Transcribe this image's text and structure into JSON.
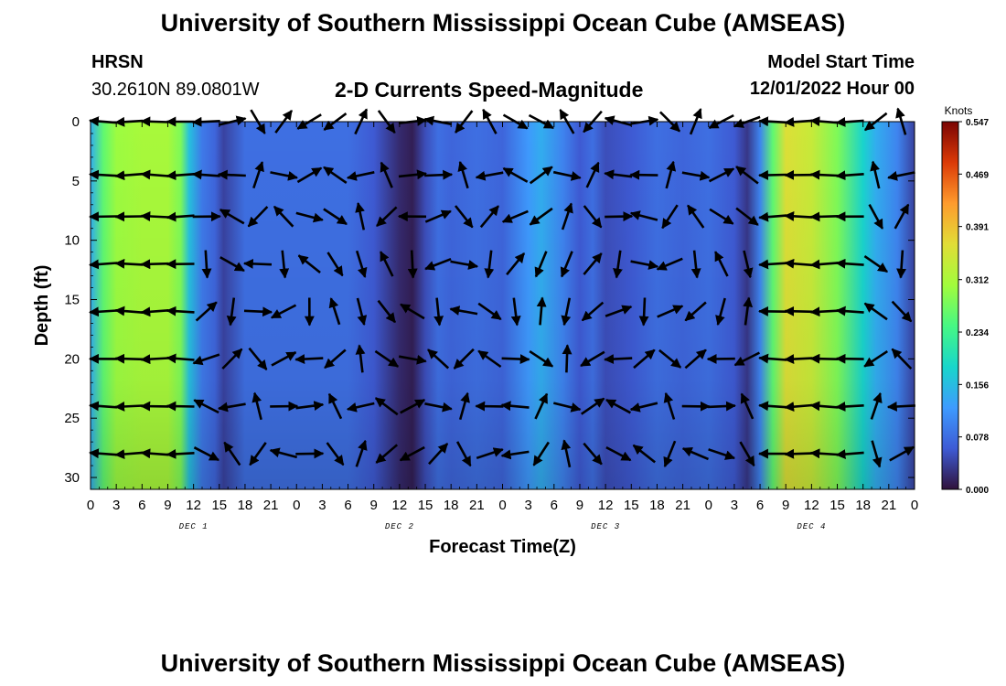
{
  "header": {
    "title": "University of Southern Mississippi Ocean Cube (AMSEAS)",
    "station_name": "HRSN",
    "station_coords": "30.2610N  89.0801W",
    "subtitle": "2-D Currents Speed-Magnitude",
    "model_start_label": "Model Start Time",
    "model_start_value": "12/01/2022 Hour 00"
  },
  "footer": {
    "title": "University of Southern Mississippi Ocean Cube (AMSEAS)"
  },
  "chart_data": {
    "type": "heatmap",
    "title": "2-D Currents Speed-Magnitude",
    "xlabel": "Forecast Time(Z)",
    "ylabel": "Depth (ft)",
    "x_ticks": [
      "0",
      "3",
      "6",
      "9",
      "12",
      "15",
      "18",
      "21",
      "0",
      "3",
      "6",
      "9",
      "12",
      "15",
      "18",
      "21",
      "0",
      "3",
      "6",
      "9",
      "12",
      "15",
      "18",
      "21",
      "0",
      "3",
      "6",
      "9",
      "12",
      "15",
      "18",
      "21",
      "0"
    ],
    "day_labels": [
      "DEC 1",
      "DEC 2",
      "DEC 3",
      "DEC 4"
    ],
    "xlim": [
      0,
      96
    ],
    "ylim": [
      0,
      31
    ],
    "y_ticks": [
      "0",
      "5",
      "10",
      "15",
      "20",
      "25",
      "30"
    ],
    "colorbar": {
      "unit": "Knots",
      "ticks": [
        "0.547",
        "0.469",
        "0.391",
        "0.312",
        "0.234",
        "0.156",
        "0.078",
        "0.000"
      ],
      "range": [
        0,
        0.547
      ],
      "colors": [
        "#30123b",
        "#3e5bd5",
        "#3e9bfe",
        "#18d6cb",
        "#46f884",
        "#a2fc3c",
        "#e1dd37",
        "#fe9b2d",
        "#db3a07",
        "#7a0403"
      ]
    },
    "speed_profile": {
      "hours": [
        0,
        1.5,
        3,
        6,
        9,
        10.5,
        11.5,
        13,
        14.5,
        15.5,
        18,
        21,
        24,
        27,
        30,
        33,
        34.5,
        36,
        37.5,
        39,
        40.5,
        42,
        45,
        48,
        51,
        52.5,
        55,
        57,
        58.5,
        60,
        63,
        66,
        69,
        72,
        75,
        76.5,
        78,
        79.5,
        81,
        84,
        87,
        90,
        91.5,
        94,
        96
      ],
      "speed": [
        0.14,
        0.26,
        0.3,
        0.31,
        0.31,
        0.28,
        0.16,
        0.09,
        0.07,
        0.04,
        0.08,
        0.08,
        0.08,
        0.08,
        0.08,
        0.06,
        0.04,
        0.02,
        0.01,
        0.05,
        0.08,
        0.07,
        0.08,
        0.07,
        0.12,
        0.14,
        0.1,
        0.06,
        0.08,
        0.05,
        0.06,
        0.08,
        0.07,
        0.08,
        0.06,
        0.03,
        0.1,
        0.26,
        0.36,
        0.34,
        0.28,
        0.18,
        0.14,
        0.1,
        0.04
      ]
    },
    "depths": [
      0,
      4.5,
      8,
      12,
      16,
      20,
      24,
      28
    ]
  }
}
